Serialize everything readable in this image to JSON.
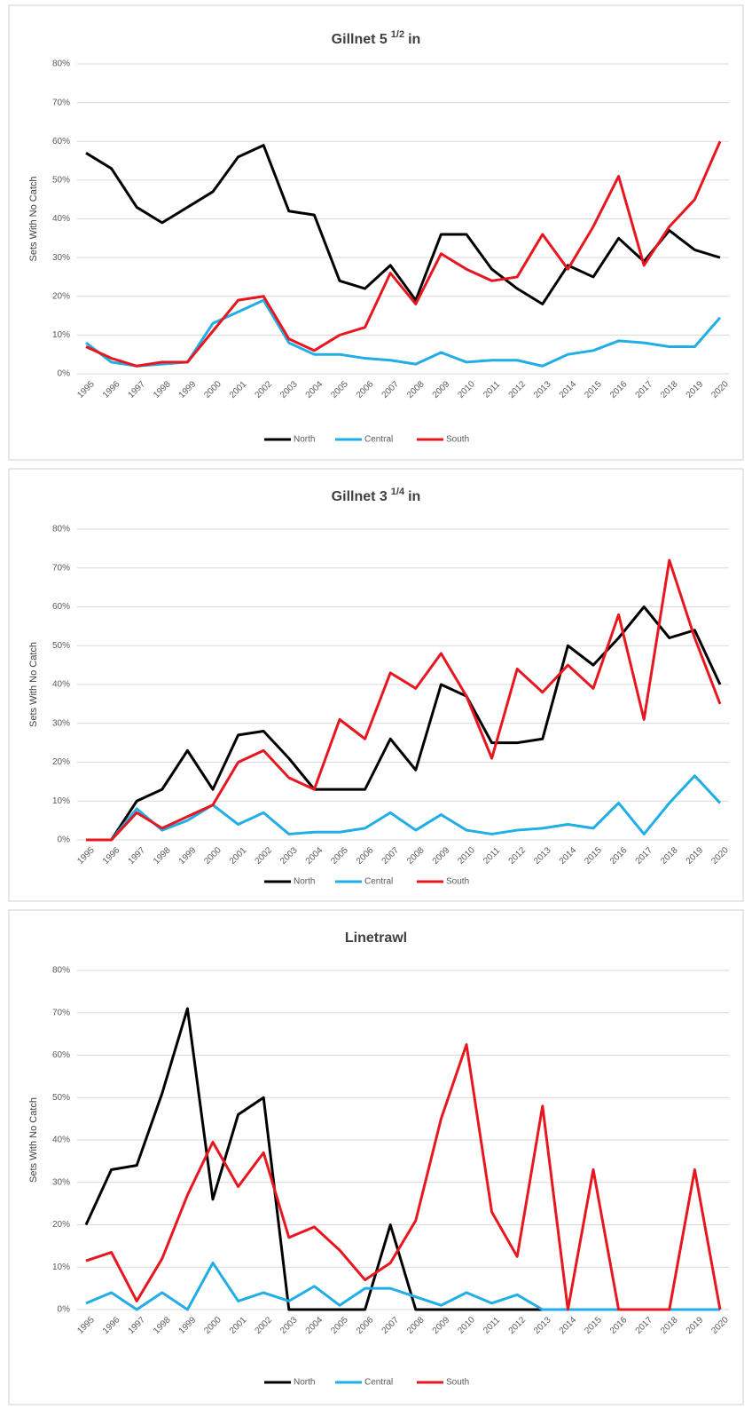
{
  "chart_data": [
    {
      "type": "line",
      "title": "Gillnet 5",
      "title_superscript": "1/2",
      "title_suffix": "in",
      "y_label": "Sets With No Catch",
      "categories": [
        "1995",
        "1996",
        "1997",
        "1998",
        "1999",
        "2000",
        "2001",
        "2002",
        "2003",
        "2004",
        "2005",
        "2006",
        "2007",
        "2008",
        "2009",
        "2010",
        "2011",
        "2012",
        "2013",
        "2014",
        "2015",
        "2016",
        "2017",
        "2018",
        "2019",
        "2020"
      ],
      "ylim": [
        0,
        80
      ],
      "yticks": [
        {
          "value": 0,
          "label": "0%"
        },
        {
          "value": 10,
          "label": "10%"
        },
        {
          "value": 20,
          "label": "20%"
        },
        {
          "value": 30,
          "label": "30%"
        },
        {
          "value": 40,
          "label": "40%"
        },
        {
          "value": 50,
          "label": "50%"
        },
        {
          "value": 60,
          "label": "60%"
        },
        {
          "value": 70,
          "label": "70%"
        },
        {
          "value": 80,
          "label": "80%"
        }
      ],
      "grid": true,
      "legend": "bottom",
      "series": [
        {
          "name": "North",
          "color": "#000000",
          "values": [
            57,
            53,
            43,
            39,
            43,
            47,
            56,
            59,
            42,
            41,
            24,
            22,
            28,
            19,
            36,
            36,
            27,
            22,
            18,
            28,
            25,
            35,
            29,
            37,
            32,
            30
          ]
        },
        {
          "name": "Central",
          "color": "#21aee6",
          "values": [
            8,
            3,
            2,
            2.5,
            3,
            13,
            16,
            19,
            8,
            5,
            5,
            4,
            3.5,
            2.5,
            5.5,
            3,
            3.5,
            3.5,
            2,
            5,
            6,
            8.5,
            8,
            7,
            7,
            14.5
          ]
        },
        {
          "name": "South",
          "color": "#e8161e",
          "values": [
            7,
            4,
            2,
            3,
            3,
            11,
            19,
            20,
            9,
            6,
            10,
            12,
            26,
            18,
            31,
            27,
            24,
            25,
            36,
            27,
            38,
            51,
            28,
            38,
            45,
            60
          ]
        }
      ]
    },
    {
      "type": "line",
      "title": "Gillnet 3",
      "title_superscript": "1/4",
      "title_suffix": "in",
      "y_label": "Sets With No Catch",
      "categories": [
        "1995",
        "1996",
        "1997",
        "1998",
        "1999",
        "2000",
        "2001",
        "2002",
        "2003",
        "2004",
        "2005",
        "2006",
        "2007",
        "2008",
        "2009",
        "2010",
        "2011",
        "2012",
        "2013",
        "2014",
        "2015",
        "2016",
        "2017",
        "2018",
        "2019",
        "2020"
      ],
      "ylim": [
        0,
        80
      ],
      "yticks": [
        {
          "value": 0,
          "label": "0%"
        },
        {
          "value": 10,
          "label": "10%"
        },
        {
          "value": 20,
          "label": "20%"
        },
        {
          "value": 30,
          "label": "30%"
        },
        {
          "value": 40,
          "label": "40%"
        },
        {
          "value": 50,
          "label": "50%"
        },
        {
          "value": 60,
          "label": "60%"
        },
        {
          "value": 70,
          "label": "70%"
        },
        {
          "value": 80,
          "label": "80%"
        }
      ],
      "grid": true,
      "legend": "bottom",
      "series": [
        {
          "name": "North",
          "color": "#000000",
          "values": [
            0,
            0,
            10,
            13,
            23,
            13,
            27,
            28,
            21,
            13,
            13,
            13,
            26,
            18,
            40,
            37,
            25,
            25,
            26,
            50,
            45,
            52,
            60,
            52,
            54,
            40
          ]
        },
        {
          "name": "Central",
          "color": "#21aee6",
          "values": [
            0,
            0,
            8,
            2.5,
            5,
            9,
            4,
            7,
            1.5,
            2,
            2,
            3,
            7,
            2.5,
            6.5,
            2.5,
            1.5,
            2.5,
            3,
            4,
            3,
            9.5,
            1.5,
            9.5,
            16.5,
            9.5
          ]
        },
        {
          "name": "South",
          "color": "#e8161e",
          "values": [
            0,
            0,
            7,
            3,
            6,
            9,
            20,
            23,
            16,
            13,
            31,
            26,
            43,
            39,
            48,
            37,
            21,
            44,
            38,
            45,
            39,
            58,
            31,
            72,
            52,
            35
          ]
        }
      ]
    },
    {
      "type": "line",
      "title": "Linetrawl",
      "y_label": "Sets With No Catch",
      "categories": [
        "1995",
        "1996",
        "1997",
        "1998",
        "1999",
        "2000",
        "2001",
        "2002",
        "2003",
        "2004",
        "2005",
        "2006",
        "2007",
        "2008",
        "2009",
        "2010",
        "2011",
        "2012",
        "2013",
        "2014",
        "2015",
        "2016",
        "2017",
        "2018",
        "2019",
        "2020"
      ],
      "ylim": [
        0,
        80
      ],
      "yticks": [
        {
          "value": 0,
          "label": "0%"
        },
        {
          "value": 10,
          "label": "10%"
        },
        {
          "value": 20,
          "label": "20%"
        },
        {
          "value": 30,
          "label": "30%"
        },
        {
          "value": 40,
          "label": "40%"
        },
        {
          "value": 50,
          "label": "50%"
        },
        {
          "value": 60,
          "label": "60%"
        },
        {
          "value": 70,
          "label": "70%"
        },
        {
          "value": 80,
          "label": "80%"
        }
      ],
      "grid": true,
      "legend": "bottom",
      "series": [
        {
          "name": "North",
          "color": "#000000",
          "values": [
            20,
            33,
            34,
            51,
            71,
            26,
            46,
            50,
            0,
            0,
            0,
            0,
            20,
            0,
            0,
            0,
            0,
            0,
            0,
            null,
            null,
            null,
            null,
            null,
            null,
            null
          ]
        },
        {
          "name": "Central",
          "color": "#21aee6",
          "values": [
            1.5,
            4,
            0,
            4,
            0,
            11,
            2,
            4,
            2,
            5.5,
            1,
            5,
            5,
            3,
            1,
            4,
            1.5,
            3.5,
            0,
            0,
            0,
            0,
            0,
            0,
            0,
            0
          ]
        },
        {
          "name": "South",
          "color": "#e8161e",
          "values": [
            11.5,
            13.5,
            2,
            12,
            27,
            39.5,
            29,
            37,
            17,
            19.5,
            14,
            7,
            11,
            21,
            45,
            62.5,
            23,
            12.5,
            48,
            0,
            33,
            0,
            0,
            0,
            33,
            0
          ]
        }
      ]
    }
  ]
}
